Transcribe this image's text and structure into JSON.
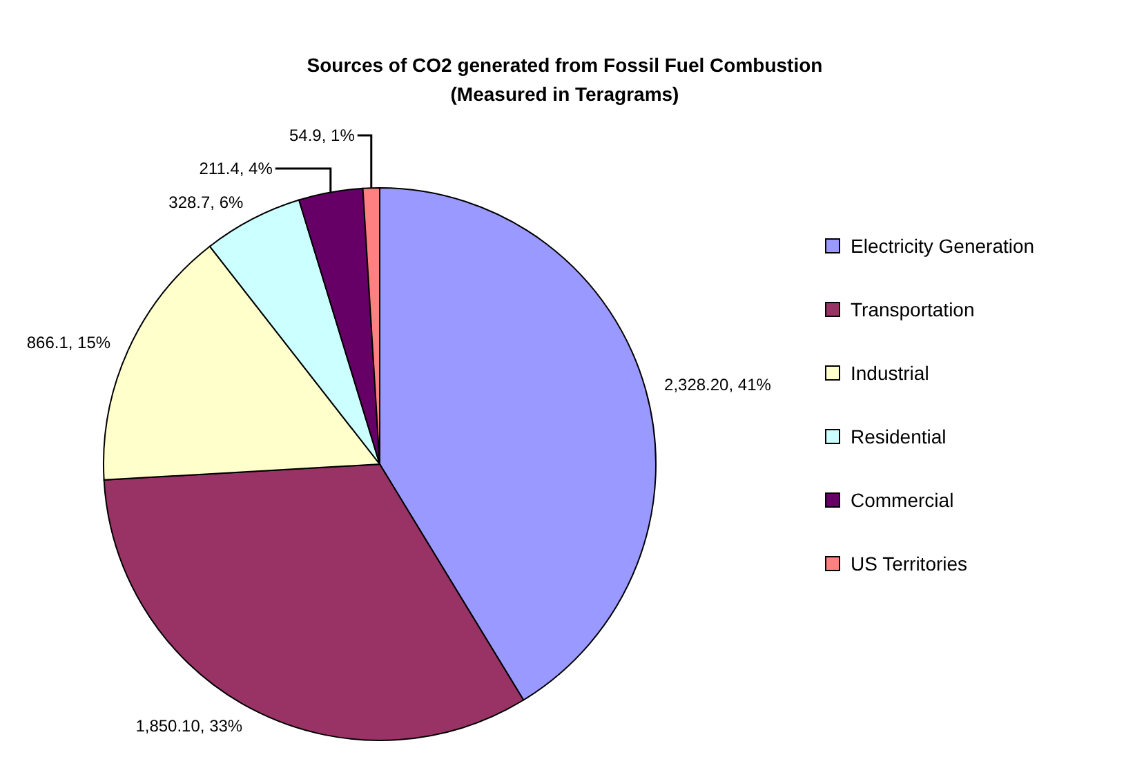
{
  "chart_data": {
    "type": "pie",
    "title": "Sources of CO2 generated from Fossil Fuel Combustion",
    "subtitle": "(Measured in Teragrams)",
    "categories": [
      "Electricity Generation",
      "Transportation",
      "Industrial",
      "Residential",
      "Commercial",
      "US Territories"
    ],
    "values": [
      2328.2,
      1850.1,
      866.1,
      328.7,
      211.4,
      54.9
    ],
    "colors": [
      "#9999ff",
      "#993366",
      "#ffffcc",
      "#ccffff",
      "#660066",
      "#ff8080"
    ],
    "value_labels": [
      "2,328.20, 41%",
      "1,850.10, 33%",
      "866.1, 15%",
      "328.7, 6%",
      "211.4, 4%",
      "54.9, 1%"
    ],
    "legend": "right"
  }
}
